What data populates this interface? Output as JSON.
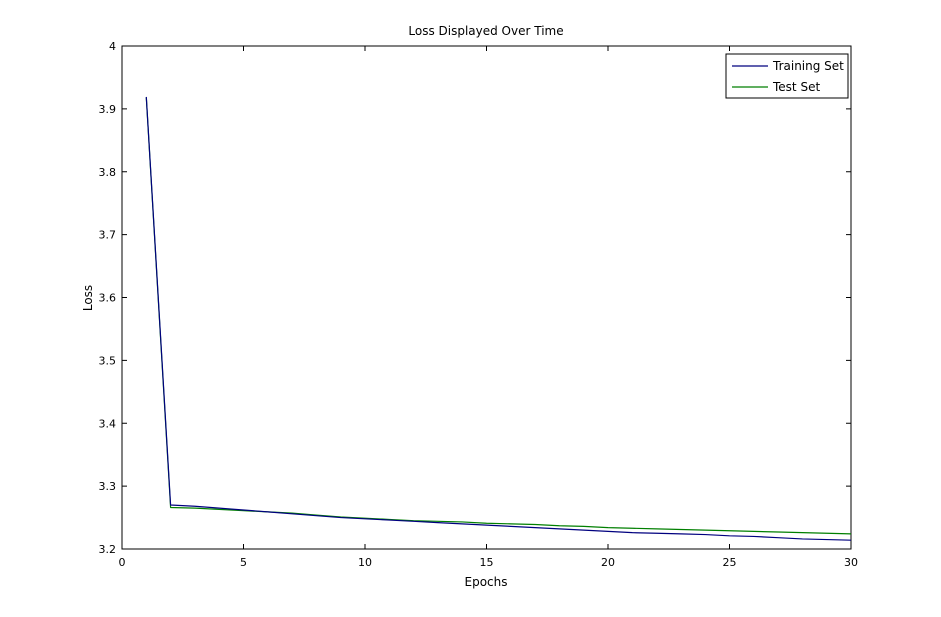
{
  "chart_data": {
    "type": "line",
    "title": "Loss Displayed Over Time",
    "xlabel": "Epochs",
    "ylabel": "Loss",
    "xlim": [
      0,
      30
    ],
    "ylim": [
      3.2,
      4.0
    ],
    "xticks": [
      0,
      5,
      10,
      15,
      20,
      25,
      30
    ],
    "yticks": [
      3.2,
      3.3,
      3.4,
      3.5,
      3.6,
      3.7,
      3.8,
      3.9,
      4.0
    ],
    "xtick_labels": [
      "0",
      "5",
      "10",
      "15",
      "20",
      "25",
      "30"
    ],
    "ytick_labels": [
      "3.2",
      "3.3",
      "3.4",
      "3.5",
      "3.6",
      "3.7",
      "3.8",
      "3.9",
      "4"
    ],
    "grid": false,
    "legend_position": "top-right",
    "series": [
      {
        "name": "Training Set",
        "color": "#00007f",
        "x": [
          1,
          2,
          3,
          4,
          5,
          6,
          7,
          8,
          9,
          10,
          11,
          12,
          13,
          14,
          15,
          16,
          17,
          18,
          19,
          20,
          21,
          22,
          23,
          24,
          25,
          26,
          27,
          28,
          29,
          30
        ],
        "y": [
          3.919,
          3.27,
          3.268,
          3.265,
          3.262,
          3.259,
          3.256,
          3.253,
          3.25,
          3.248,
          3.246,
          3.244,
          3.242,
          3.24,
          3.238,
          3.236,
          3.234,
          3.232,
          3.23,
          3.228,
          3.226,
          3.225,
          3.224,
          3.223,
          3.221,
          3.22,
          3.218,
          3.216,
          3.215,
          3.214
        ]
      },
      {
        "name": "Test Set",
        "color": "#007f00",
        "x": [
          1,
          2,
          3,
          4,
          5,
          6,
          7,
          8,
          9,
          10,
          11,
          12,
          13,
          14,
          15,
          16,
          17,
          18,
          19,
          20,
          21,
          22,
          23,
          24,
          25,
          26,
          27,
          28,
          29,
          30
        ],
        "y": [
          3.918,
          3.266,
          3.265,
          3.263,
          3.261,
          3.259,
          3.257,
          3.254,
          3.251,
          3.249,
          3.247,
          3.245,
          3.244,
          3.243,
          3.241,
          3.24,
          3.239,
          3.237,
          3.236,
          3.234,
          3.233,
          3.232,
          3.231,
          3.23,
          3.229,
          3.228,
          3.227,
          3.226,
          3.225,
          3.224
        ]
      }
    ]
  }
}
